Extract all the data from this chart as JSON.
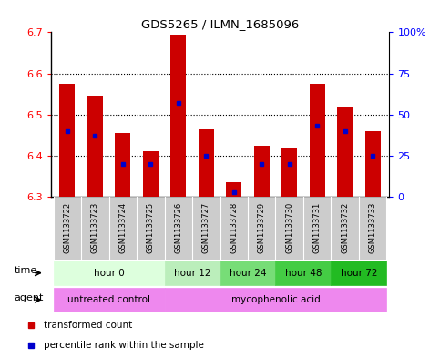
{
  "title": "GDS5265 / ILMN_1685096",
  "samples": [
    "GSM1133722",
    "GSM1133723",
    "GSM1133724",
    "GSM1133725",
    "GSM1133726",
    "GSM1133727",
    "GSM1133728",
    "GSM1133729",
    "GSM1133730",
    "GSM1133731",
    "GSM1133732",
    "GSM1133733"
  ],
  "transformed_counts": [
    6.575,
    6.545,
    6.455,
    6.41,
    6.695,
    6.465,
    6.335,
    6.425,
    6.42,
    6.575,
    6.52,
    6.46
  ],
  "percentile_ranks": [
    40,
    37,
    20,
    20,
    57,
    25,
    3,
    20,
    20,
    43,
    40,
    25
  ],
  "ymin": 6.3,
  "ymax": 6.7,
  "y_ticks_left": [
    6.3,
    6.4,
    6.5,
    6.6,
    6.7
  ],
  "y_ticks_right": [
    0,
    25,
    50,
    75,
    100
  ],
  "bar_color": "#cc0000",
  "dot_color": "#0000cc",
  "bar_bottom": 6.3,
  "time_groups": [
    {
      "label": "hour 0",
      "start": 0,
      "end": 4,
      "color": "#ddffdd"
    },
    {
      "label": "hour 12",
      "start": 4,
      "end": 6,
      "color": "#bbeebb"
    },
    {
      "label": "hour 24",
      "start": 6,
      "end": 8,
      "color": "#77dd77"
    },
    {
      "label": "hour 48",
      "start": 8,
      "end": 10,
      "color": "#44cc44"
    },
    {
      "label": "hour 72",
      "start": 10,
      "end": 12,
      "color": "#22bb22"
    }
  ],
  "agent_groups": [
    {
      "label": "untreated control",
      "start": 0,
      "end": 4,
      "color": "#ee88ee"
    },
    {
      "label": "mycophenolic acid",
      "start": 4,
      "end": 12,
      "color": "#ee88ee"
    }
  ],
  "sample_bg_color": "#cccccc",
  "plot_bg_color": "#ffffff",
  "grid_color": "#000000",
  "grid_linestyle": ":",
  "grid_linewidth": 0.8
}
